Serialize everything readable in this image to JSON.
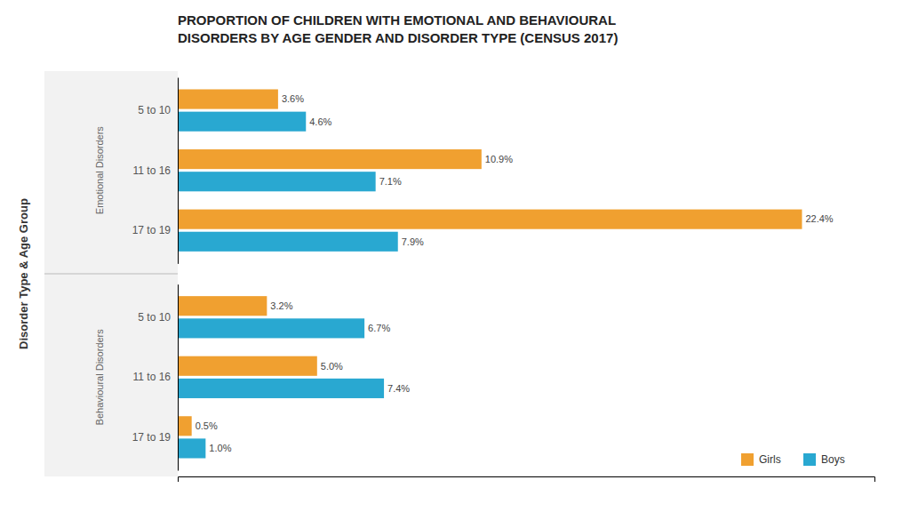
{
  "chart_data": {
    "type": "bar",
    "orientation": "horizontal",
    "title": "PROPORTION OF CHILDREN WITH EMOTIONAL AND BEHAVIOURAL\nDISORDERS BY AGE GENDER AND DISORDER TYPE (CENSUS 2017)",
    "ylabel": "Disorder Type & Age Group",
    "categories": [
      "5 to 10",
      "11 to 16",
      "17 to 19",
      "5 to 10",
      "11 to 16",
      "17 to 19"
    ],
    "groups": [
      {
        "name": "Emotional Disorders",
        "count": 3
      },
      {
        "name": "Behavioural Disorders",
        "count": 3
      }
    ],
    "series": [
      {
        "name": "Girls",
        "color": "#F0A030",
        "values": [
          3.6,
          10.9,
          22.4,
          3.2,
          5.0,
          0.5
        ],
        "value_labels": [
          "3.6%",
          "10.9%",
          "22.4%",
          "3.2%",
          "5.0%",
          "0.5%"
        ]
      },
      {
        "name": "Boys",
        "color": "#29A8D1",
        "values": [
          4.6,
          7.1,
          7.9,
          6.7,
          7.4,
          1.0
        ],
        "value_labels": [
          "4.6%",
          "7.1%",
          "7.9%",
          "6.7%",
          "7.4%",
          "1.0%"
        ]
      }
    ],
    "xlim": [
      0,
      25
    ],
    "tick_labels": "y",
    "grid": false,
    "legend": "lower right",
    "data_labels": true
  }
}
